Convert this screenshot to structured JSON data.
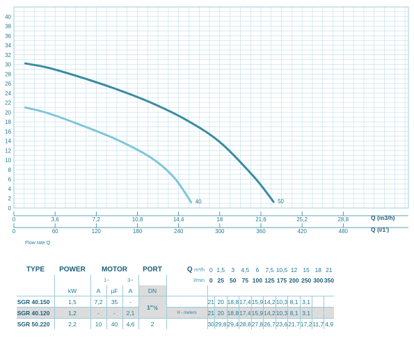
{
  "chart_data": {
    "type": "line",
    "xlim": [
      0,
      34.5
    ],
    "ylim": [
      0,
      42
    ],
    "y_ticks": [
      "0",
      "2",
      "4",
      "6",
      "8",
      "10",
      "12",
      "14",
      "16",
      "18",
      "20",
      "22",
      "24",
      "26",
      "28",
      "30",
      "32",
      "34",
      "36",
      "38",
      "40"
    ],
    "x_ticks_m3h": [
      "0",
      "3,6",
      "7,2",
      "10,8",
      "14,4",
      "18",
      "21,6",
      "25,2",
      "28,8"
    ],
    "x_ticks_lmin": [
      "0",
      "60",
      "120",
      "180",
      "240",
      "300",
      "360",
      "420",
      "480"
    ],
    "x_label_m3h": "Q (m3/h)",
    "x_label_lmin": "Q (l/1')",
    "x_caption": "Flow rate Q",
    "series": [
      {
        "name": "40",
        "color": "#80c6da",
        "x": [
          1,
          3,
          6,
          9,
          12,
          14,
          15.5
        ],
        "y": [
          21,
          19.8,
          17.2,
          14.3,
          10.5,
          6.4,
          1.2
        ]
      },
      {
        "name": "50",
        "color": "#3a8ca2",
        "x": [
          1,
          3,
          6,
          9,
          12,
          15,
          18,
          21,
          22.7
        ],
        "y": [
          30.2,
          29.3,
          27.2,
          24.8,
          22,
          18.5,
          13.8,
          6.5,
          1.3
        ]
      }
    ]
  },
  "table": {
    "headers": {
      "type": "TYPE",
      "power": "POWER",
      "motor": "MOTOR",
      "port": "PORT",
      "q": "Q"
    },
    "q_unit_m3h": "m³/h",
    "q_unit_lmin": "l/min",
    "q_m3h": [
      "0",
      "1,5",
      "3",
      "4,5",
      "6",
      "7,5",
      "10,5",
      "12",
      "15",
      "18",
      "21"
    ],
    "q_lmin": [
      "0",
      "25",
      "50",
      "75",
      "100",
      "125",
      "175",
      "200",
      "250",
      "300",
      "350"
    ],
    "phase1": "1~",
    "phase3": "3~",
    "units": {
      "kw": "kW",
      "a1": "A",
      "uf": "µF",
      "a3": "A",
      "dn": "DN"
    },
    "h_label": "H - meters",
    "port_12": "1\"½",
    "rows": [
      {
        "type": "SGR 40.150",
        "kw": "1,5",
        "a1": "7,2",
        "uf": "35",
        "a3": "-",
        "port": "",
        "h": [
          "21",
          "20",
          "18,8",
          "17,4",
          "15,9",
          "14,2",
          "10,3",
          "8,1",
          "3,1",
          "",
          ""
        ]
      },
      {
        "type": "SGR 40.120",
        "kw": "1,2",
        "a1": "-",
        "uf": "-",
        "a3": "2,1",
        "port": "",
        "h": [
          "21",
          "20",
          "18,8",
          "17,4",
          "15,9",
          "14,2",
          "10,3",
          "8,1",
          "3,1",
          "",
          ""
        ]
      },
      {
        "type": "SGR 50.220",
        "kw": "2,2",
        "a1": "10",
        "uf": "40",
        "a3": "4,6",
        "port": "2",
        "h": [
          "30",
          "29,8",
          "29,4",
          "28,8",
          "27,8",
          "26,7",
          "23,6",
          "21,7",
          "17,2",
          "11,7",
          "4,9"
        ]
      }
    ]
  }
}
